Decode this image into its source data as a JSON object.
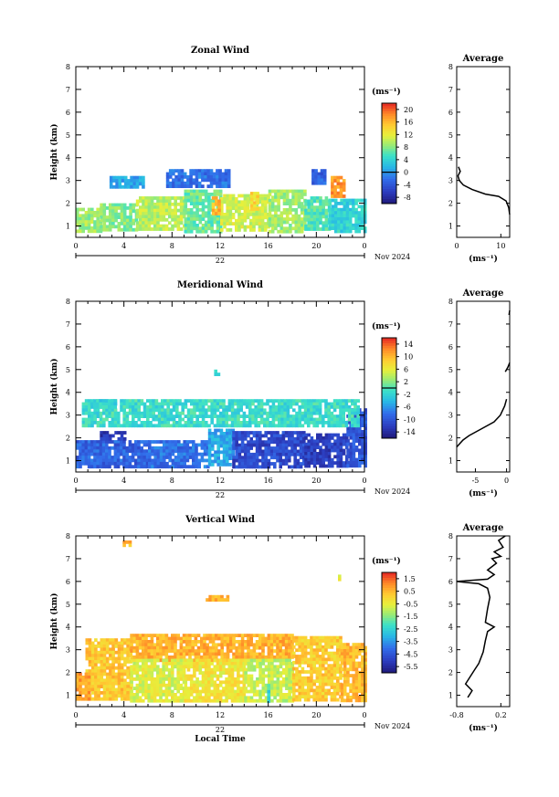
{
  "figure": {
    "date_label": "Nov 2024",
    "day_label": "22",
    "xlabel": "Local Time",
    "ylabel": "Height (km)",
    "unit": "(ms⁻¹)",
    "x_ticks": [
      "0",
      "4",
      "8",
      "12",
      "16",
      "20",
      "0"
    ],
    "y_ticks": [
      "1",
      "2",
      "3",
      "4",
      "5",
      "6",
      "7",
      "8"
    ]
  },
  "chart_data": [
    {
      "type": "heatmap",
      "title": "Zonal Wind",
      "xlabel": "",
      "ylabel": "Height (km)",
      "xlim": [
        0,
        24
      ],
      "ylim": [
        0.5,
        8
      ],
      "colorbar": {
        "ticks": [
          "20",
          "16",
          "12",
          "8",
          "4",
          "0",
          "-4",
          "-8"
        ],
        "range": [
          -10,
          22
        ],
        "zero_line": 0
      },
      "blobs": [
        {
          "x": [
            0,
            2
          ],
          "y": [
            0.8,
            1.8
          ],
          "value": 9
        },
        {
          "x": [
            2,
            5
          ],
          "y": [
            0.8,
            2.0
          ],
          "value": 8
        },
        {
          "x": [
            5,
            9
          ],
          "y": [
            0.8,
            2.3
          ],
          "value": 10
        },
        {
          "x": [
            9,
            12
          ],
          "y": [
            0.8,
            2.6
          ],
          "value": 7
        },
        {
          "x": [
            12,
            16
          ],
          "y": [
            0.8,
            2.4
          ],
          "value": 11
        },
        {
          "x": [
            16,
            19
          ],
          "y": [
            0.8,
            2.6
          ],
          "value": 9
        },
        {
          "x": [
            19,
            21
          ],
          "y": [
            0.8,
            2.3
          ],
          "value": 6
        },
        {
          "x": [
            21,
            24
          ],
          "y": [
            0.8,
            2.2
          ],
          "value": 4
        },
        {
          "x": [
            11.3,
            11.9
          ],
          "y": [
            1.6,
            2.3
          ],
          "value": 16
        },
        {
          "x": [
            14.5,
            15.2
          ],
          "y": [
            1.8,
            2.5
          ],
          "value": 14
        },
        {
          "x": [
            21.2,
            22.2
          ],
          "y": [
            2.3,
            3.2
          ],
          "value": 18
        },
        {
          "x": [
            7.5,
            12.7
          ],
          "y": [
            2.8,
            3.5
          ],
          "value": -2
        },
        {
          "x": [
            19.6,
            20.8
          ],
          "y": [
            2.9,
            3.5
          ],
          "value": -3
        },
        {
          "x": [
            2.8,
            5.6
          ],
          "y": [
            2.7,
            3.2
          ],
          "value": 1
        }
      ],
      "average_profile": {
        "title": "Average",
        "xlabel": "(ms⁻¹)",
        "xlim": [
          0,
          12
        ],
        "ylim": [
          0.5,
          8
        ],
        "x_ticks": [
          "0",
          "10"
        ],
        "values": [
          [
            12,
            1.5
          ],
          [
            11.8,
            1.8
          ],
          [
            11.2,
            2.1
          ],
          [
            9.5,
            2.3
          ],
          [
            6.5,
            2.4
          ],
          [
            3.5,
            2.6
          ],
          [
            1.5,
            2.8
          ],
          [
            0.6,
            3.0
          ],
          [
            0.3,
            3.2
          ],
          [
            0.8,
            3.4
          ],
          [
            0.4,
            3.6
          ]
        ]
      }
    },
    {
      "type": "heatmap",
      "title": "Meridional Wind",
      "xlabel": "",
      "ylabel": "Height (km)",
      "xlim": [
        0,
        24
      ],
      "ylim": [
        0.5,
        8
      ],
      "colorbar": {
        "ticks": [
          "14",
          "10",
          "6",
          "2",
          "-2",
          "-6",
          "-10",
          "-14"
        ],
        "range": [
          -16,
          16
        ],
        "zero_line": 0
      },
      "blobs": [
        {
          "x": [
            0,
            6
          ],
          "y": [
            0.8,
            1.9
          ],
          "value": -9
        },
        {
          "x": [
            6,
            11
          ],
          "y": [
            0.8,
            1.9
          ],
          "value": -8
        },
        {
          "x": [
            11,
            13
          ],
          "y": [
            0.8,
            2.4
          ],
          "value": -5
        },
        {
          "x": [
            13,
            19
          ],
          "y": [
            0.8,
            2.3
          ],
          "value": -11
        },
        {
          "x": [
            19,
            22.5
          ],
          "y": [
            0.8,
            2.2
          ],
          "value": -12
        },
        {
          "x": [
            22.5,
            24
          ],
          "y": [
            0.8,
            3.3
          ],
          "value": -10
        },
        {
          "x": [
            2,
            4
          ],
          "y": [
            1.9,
            2.3
          ],
          "value": -13
        },
        {
          "x": [
            0.5,
            23.5
          ],
          "y": [
            2.5,
            3.7
          ],
          "value": -1
        },
        {
          "x": [
            1.2,
            3.2
          ],
          "y": [
            3.4,
            3.7
          ],
          "value": -2
        },
        {
          "x": [
            11.5,
            11.8
          ],
          "y": [
            4.8,
            5.0
          ],
          "value": -1
        }
      ],
      "average_profile": {
        "title": "Average",
        "xlabel": "(ms⁻¹)",
        "xlim": [
          -8,
          0.5
        ],
        "ylim": [
          0.5,
          8
        ],
        "x_ticks": [
          "-5",
          "0"
        ],
        "values": [
          [
            -8,
            1.6
          ],
          [
            -7,
            1.9
          ],
          [
            -6,
            2.1
          ],
          [
            -4,
            2.4
          ],
          [
            -2,
            2.7
          ],
          [
            -1,
            3.0
          ],
          [
            -0.3,
            3.4
          ],
          [
            0,
            3.7
          ]
        ],
        "values_upper": [
          [
            -0.2,
            4.9
          ],
          [
            0.2,
            5.1
          ],
          [
            0.5,
            5.3
          ]
        ],
        "values_top": [
          [
            0.4,
            7.4
          ],
          [
            0.5,
            7.6
          ]
        ]
      }
    },
    {
      "type": "heatmap",
      "title": "Vertical Wind",
      "xlabel": "Local Time",
      "ylabel": "Height (km)",
      "xlim": [
        0,
        24
      ],
      "ylim": [
        0.5,
        8
      ],
      "colorbar": {
        "ticks": [
          "1.5",
          "0.5",
          "-0.5",
          "-1.5",
          "-2.5",
          "-3.5",
          "-4.5",
          "-5.5"
        ],
        "range": [
          -6,
          2
        ],
        "zero_line": null
      },
      "blobs": [
        {
          "x": [
            0.8,
            4.5
          ],
          "y": [
            0.8,
            3.5
          ],
          "value": 0.3
        },
        {
          "x": [
            0,
            1
          ],
          "y": [
            0.8,
            2.0
          ],
          "value": 0.8
        },
        {
          "x": [
            4.5,
            18
          ],
          "y": [
            2.6,
            3.7
          ],
          "value": 0.6
        },
        {
          "x": [
            4.5,
            9
          ],
          "y": [
            0.8,
            2.6
          ],
          "value": -0.6
        },
        {
          "x": [
            9,
            14
          ],
          "y": [
            0.8,
            2.6
          ],
          "value": -0.3
        },
        {
          "x": [
            14,
            18
          ],
          "y": [
            0.8,
            2.6
          ],
          "value": -0.9
        },
        {
          "x": [
            18,
            22
          ],
          "y": [
            0.8,
            3.6
          ],
          "value": 0.2
        },
        {
          "x": [
            22,
            24
          ],
          "y": [
            0.8,
            3.3
          ],
          "value": 0.5
        },
        {
          "x": [
            15.9,
            16.1
          ],
          "y": [
            0.8,
            1.5
          ],
          "value": -2.3
        },
        {
          "x": [
            3.9,
            4.6
          ],
          "y": [
            7.6,
            7.8
          ],
          "value": 0.5
        },
        {
          "x": [
            10.8,
            12.7
          ],
          "y": [
            5.2,
            5.4
          ],
          "value": 0.7
        },
        {
          "x": [
            21.8,
            22.0
          ],
          "y": [
            6.1,
            6.3
          ],
          "value": -0.3
        }
      ],
      "average_profile": {
        "title": "Average",
        "xlabel": "(ms⁻¹)",
        "xlim": [
          -0.8,
          0.4
        ],
        "ylim": [
          0.5,
          8
        ],
        "x_ticks": [
          "-0.8",
          "0.2"
        ],
        "values": [
          [
            -0.55,
            0.9
          ],
          [
            -0.45,
            1.2
          ],
          [
            -0.6,
            1.5
          ],
          [
            -0.5,
            1.8
          ],
          [
            -0.4,
            2.1
          ],
          [
            -0.3,
            2.4
          ],
          [
            -0.2,
            2.9
          ],
          [
            -0.15,
            3.4
          ],
          [
            -0.1,
            3.8
          ],
          [
            0.05,
            4.0
          ],
          [
            -0.15,
            4.2
          ],
          [
            -0.1,
            4.8
          ],
          [
            -0.05,
            5.3
          ],
          [
            -0.1,
            5.7
          ],
          [
            -0.3,
            5.9
          ],
          [
            -0.8,
            6.0
          ],
          [
            -0.1,
            6.1
          ],
          [
            0.05,
            6.3
          ],
          [
            -0.1,
            6.5
          ],
          [
            0.1,
            6.8
          ],
          [
            0.0,
            7.0
          ],
          [
            0.2,
            7.1
          ],
          [
            0.05,
            7.3
          ],
          [
            0.25,
            7.5
          ],
          [
            0.15,
            7.8
          ],
          [
            0.3,
            8.0
          ]
        ]
      }
    }
  ]
}
